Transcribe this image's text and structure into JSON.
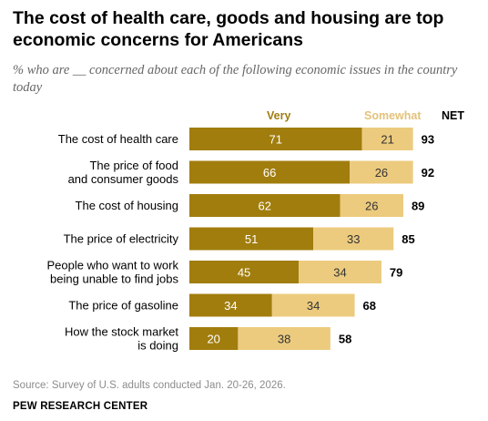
{
  "title": "The cost of health care, goods and housing are top economic concerns for Americans",
  "subtitle": "% who are __ concerned about each of the following economic issues in the country today",
  "source": "Source: Survey of U.S. adults conducted Jan. 20-26, 2026.",
  "credit": "PEW RESEARCH CENTER",
  "colors": {
    "very": "#a17d0d",
    "somewhat": "#eccb7e"
  },
  "chart_data": {
    "type": "bar",
    "orientation": "horizontal",
    "stacked": true,
    "headers": {
      "very": "Very",
      "somewhat": "Somewhat",
      "net": "NET"
    },
    "categories": [
      [
        "The cost of health care"
      ],
      [
        "The price of food",
        "and consumer goods"
      ],
      [
        "The cost of housing"
      ],
      [
        "The price of electricity"
      ],
      [
        "People who want to work",
        "being unable to find jobs"
      ],
      [
        "The price of gasoline"
      ],
      [
        "How the stock market",
        "is doing"
      ]
    ],
    "series": [
      {
        "name": "Very",
        "values": [
          71,
          66,
          62,
          51,
          45,
          34,
          20
        ]
      },
      {
        "name": "Somewhat",
        "values": [
          21,
          26,
          26,
          33,
          34,
          34,
          38
        ]
      }
    ],
    "net": [
      93,
      92,
      89,
      85,
      79,
      68,
      58
    ],
    "xlim": [
      0,
      100
    ],
    "grid": false,
    "legend": "top"
  }
}
